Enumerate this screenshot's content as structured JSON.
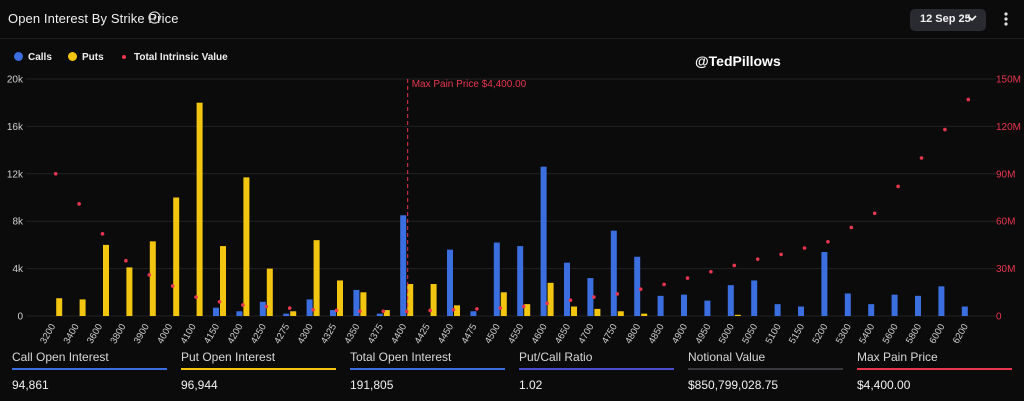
{
  "header": {
    "title": "Open Interest By Strike Price",
    "info_icon": "info-icon",
    "date_selector": "12 Sep 25",
    "menu_icon": "kebab-icon"
  },
  "legend": {
    "calls": "Calls",
    "puts": "Puts",
    "intrinsic": "Total Intrinsic Value"
  },
  "watermark": "@TedPillows",
  "colors": {
    "calls": "#3b6fe0",
    "puts": "#f2c511",
    "intrinsic": "#e8364f",
    "put_call_line": "#4c4fd1",
    "notional_line": "#3a3a3e",
    "maxpain_line": "#e8364f"
  },
  "chart_data": {
    "type": "bar",
    "categories": [
      "3200",
      "3400",
      "3600",
      "3800",
      "3900",
      "4000",
      "4100",
      "4150",
      "4200",
      "4250",
      "4275",
      "4300",
      "4325",
      "4350",
      "4375",
      "4400",
      "4425",
      "4450",
      "4475",
      "4500",
      "4550",
      "4600",
      "4650",
      "4700",
      "4750",
      "4800",
      "4850",
      "4900",
      "4950",
      "5000",
      "5050",
      "5100",
      "5150",
      "5200",
      "5300",
      "5400",
      "5600",
      "5800",
      "6000",
      "6200"
    ],
    "series": [
      {
        "name": "Calls",
        "axis": "left",
        "values": [
          0,
          0,
          0,
          0,
          0,
          0,
          0,
          700,
          400,
          1200,
          200,
          1400,
          500,
          2200,
          200,
          8500,
          0,
          5600,
          400,
          6200,
          5900,
          12600,
          4500,
          3200,
          7200,
          5000,
          1700,
          1800,
          1300,
          2600,
          3000,
          1000,
          800,
          5400,
          1900,
          1000,
          1800,
          1700,
          2500,
          800
        ]
      },
      {
        "name": "Puts",
        "axis": "left",
        "values": [
          1500,
          1400,
          6000,
          4100,
          6300,
          10000,
          18000,
          5900,
          11700,
          4000,
          400,
          6400,
          3000,
          2000,
          500,
          2700,
          2700,
          900,
          0,
          2000,
          1000,
          2800,
          800,
          600,
          400,
          200,
          0,
          0,
          0,
          100,
          0,
          0,
          0,
          0,
          0,
          0,
          0,
          0,
          0,
          0
        ]
      },
      {
        "name": "Total Intrinsic Value",
        "axis": "right",
        "type": "scatter",
        "values": [
          90000000,
          71000000,
          52000000,
          35000000,
          26000000,
          19000000,
          12000000,
          9000000,
          7000000,
          6000000,
          5000000,
          4000000,
          3500000,
          3000000,
          3000000,
          3000000,
          3500000,
          4000000,
          4500000,
          5000000,
          6000000,
          8000000,
          10000000,
          12000000,
          14000000,
          17000000,
          20000000,
          24000000,
          28000000,
          32000000,
          36000000,
          39000000,
          43000000,
          47000000,
          56000000,
          65000000,
          82000000,
          100000000,
          118000000,
          137000000
        ]
      }
    ],
    "left_axis": {
      "ticks": [
        "0",
        "4k",
        "8k",
        "12k",
        "16k",
        "20k"
      ],
      "ylim": [
        0,
        20000
      ]
    },
    "right_axis": {
      "ticks": [
        "0",
        "30M",
        "60M",
        "90M",
        "120M",
        "150M"
      ],
      "ylim": [
        0,
        150000000
      ]
    },
    "annotation": {
      "label": "Max Pain Price $4,400.00",
      "category": "4400"
    },
    "grid": true,
    "legend_position": "top-left"
  },
  "stats": [
    {
      "label": "Call Open Interest",
      "value": "94,861",
      "color": "#3b6fe0"
    },
    {
      "label": "Put Open Interest",
      "value": "96,944",
      "color": "#f2c511"
    },
    {
      "label": "Total Open Interest",
      "value": "191,805",
      "color": "#3b6fe0"
    },
    {
      "label": "Put/Call Ratio",
      "value": "1.02",
      "color": "#4c4fd1"
    },
    {
      "label": "Notional Value",
      "value": "$850,799,028.75",
      "color": "#3a3a3e"
    },
    {
      "label": "Max Pain Price",
      "value": "$4,400.00",
      "color": "#e8364f"
    }
  ]
}
